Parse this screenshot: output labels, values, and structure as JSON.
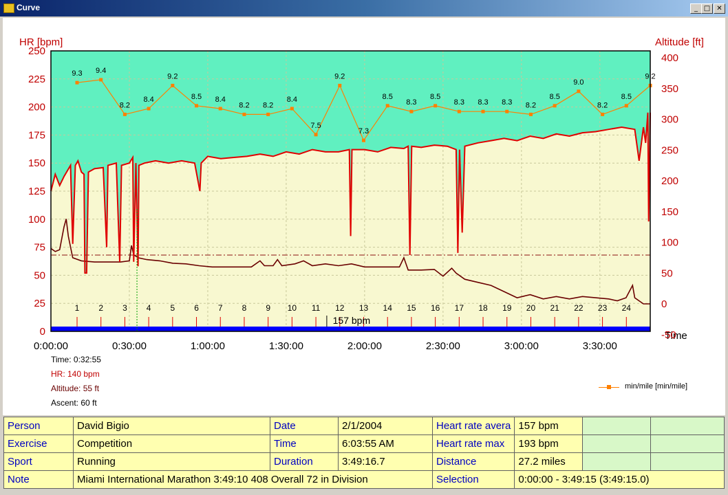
{
  "window": {
    "title": "Curve",
    "buttons": {
      "minimize": "_",
      "maximize": "□",
      "close": "✕"
    }
  },
  "chart_data": {
    "type": "line",
    "left_axis_label": "HR [bpm]",
    "right_axis_label": "Altitude [ft]",
    "x_axis_label": "Time",
    "left_ticks": [
      "250",
      "225",
      "200",
      "175",
      "150",
      "125",
      "100",
      "75",
      "50",
      "25",
      "0"
    ],
    "right_ticks": [
      "400",
      "350",
      "300",
      "250",
      "200",
      "150",
      "100",
      "50",
      "0",
      "-50"
    ],
    "x_ticks": [
      "0:00:00",
      "0:30:00",
      "1:00:00",
      "1:30:00",
      "2:00:00",
      "2:30:00",
      "3:00:00",
      "3:30:00"
    ],
    "hr_ylim": [
      0,
      250
    ],
    "alt_ylim": [
      -50,
      400
    ],
    "time_range_seconds": [
      0,
      13756
    ],
    "hr_avg_bpm": 157,
    "hr_avg_label": "157 bpm",
    "hr_level_shown": 68,
    "hr_curve": [
      [
        0,
        125
      ],
      [
        100,
        140
      ],
      [
        200,
        130
      ],
      [
        300,
        138
      ],
      [
        450,
        148
      ],
      [
        500,
        78
      ],
      [
        560,
        148
      ],
      [
        620,
        152
      ],
      [
        700,
        142
      ],
      [
        760,
        140
      ],
      [
        780,
        52
      ],
      [
        820,
        52
      ],
      [
        860,
        142
      ],
      [
        1000,
        145
      ],
      [
        1200,
        146
      ],
      [
        1280,
        75
      ],
      [
        1310,
        148
      ],
      [
        1500,
        150
      ],
      [
        1580,
        62
      ],
      [
        1620,
        148
      ],
      [
        1800,
        150
      ],
      [
        1880,
        155
      ],
      [
        1900,
        62
      ],
      [
        1950,
        150
      ],
      [
        2000,
        58
      ],
      [
        2020,
        148
      ],
      [
        2150,
        150
      ],
      [
        2400,
        152
      ],
      [
        2700,
        150
      ],
      [
        3000,
        152
      ],
      [
        3300,
        150
      ],
      [
        3420,
        125
      ],
      [
        3450,
        150
      ],
      [
        3600,
        156
      ],
      [
        3900,
        154
      ],
      [
        4200,
        155
      ],
      [
        4500,
        156
      ],
      [
        4800,
        158
      ],
      [
        5100,
        156
      ],
      [
        5400,
        160
      ],
      [
        5700,
        158
      ],
      [
        6000,
        162
      ],
      [
        6300,
        160
      ],
      [
        6600,
        160
      ],
      [
        6850,
        162
      ],
      [
        6880,
        85
      ],
      [
        6910,
        162
      ],
      [
        7200,
        162
      ],
      [
        7500,
        160
      ],
      [
        7800,
        164
      ],
      [
        8100,
        163
      ],
      [
        8200,
        165
      ],
      [
        8240,
        68
      ],
      [
        8280,
        165
      ],
      [
        8500,
        164
      ],
      [
        8800,
        166
      ],
      [
        9100,
        165
      ],
      [
        9300,
        162
      ],
      [
        9340,
        70
      ],
      [
        9380,
        162
      ],
      [
        9440,
        88
      ],
      [
        9500,
        165
      ],
      [
        9800,
        168
      ],
      [
        10100,
        170
      ],
      [
        10400,
        172
      ],
      [
        10700,
        170
      ],
      [
        11000,
        174
      ],
      [
        11300,
        172
      ],
      [
        11600,
        176
      ],
      [
        11900,
        174
      ],
      [
        12200,
        177
      ],
      [
        12500,
        178
      ],
      [
        12800,
        180
      ],
      [
        13100,
        182
      ],
      [
        13400,
        180
      ],
      [
        13500,
        152
      ],
      [
        13600,
        182
      ],
      [
        13650,
        168
      ],
      [
        13700,
        195
      ],
      [
        13720,
        98
      ],
      [
        13756,
        195
      ]
    ],
    "alt_curve": [
      [
        0,
        90
      ],
      [
        100,
        85
      ],
      [
        200,
        88
      ],
      [
        300,
        125
      ],
      [
        350,
        138
      ],
      [
        400,
        110
      ],
      [
        500,
        75
      ],
      [
        700,
        70
      ],
      [
        1000,
        68
      ],
      [
        1300,
        68
      ],
      [
        1600,
        68
      ],
      [
        1800,
        70
      ],
      [
        1850,
        95
      ],
      [
        1900,
        80
      ],
      [
        2000,
        75
      ],
      [
        2200,
        72
      ],
      [
        2500,
        70
      ],
      [
        2800,
        66
      ],
      [
        3100,
        65
      ],
      [
        3400,
        62
      ],
      [
        3700,
        60
      ],
      [
        4000,
        60
      ],
      [
        4300,
        60
      ],
      [
        4600,
        60
      ],
      [
        4800,
        70
      ],
      [
        4900,
        62
      ],
      [
        5100,
        62
      ],
      [
        5200,
        72
      ],
      [
        5300,
        62
      ],
      [
        5600,
        65
      ],
      [
        5800,
        70
      ],
      [
        6000,
        62
      ],
      [
        6300,
        65
      ],
      [
        6600,
        62
      ],
      [
        6900,
        65
      ],
      [
        7200,
        60
      ],
      [
        7500,
        60
      ],
      [
        8000,
        60
      ],
      [
        8100,
        75
      ],
      [
        8200,
        55
      ],
      [
        8500,
        55
      ],
      [
        8800,
        56
      ],
      [
        9000,
        45
      ],
      [
        9200,
        58
      ],
      [
        9300,
        50
      ],
      [
        9500,
        40
      ],
      [
        9800,
        35
      ],
      [
        10100,
        30
      ],
      [
        10400,
        20
      ],
      [
        10700,
        10
      ],
      [
        11000,
        15
      ],
      [
        11300,
        8
      ],
      [
        11600,
        12
      ],
      [
        11900,
        8
      ],
      [
        12200,
        12
      ],
      [
        12500,
        10
      ],
      [
        12800,
        8
      ],
      [
        13000,
        5
      ],
      [
        13200,
        10
      ],
      [
        13350,
        30
      ],
      [
        13400,
        10
      ],
      [
        13600,
        0
      ],
      [
        13756,
        0
      ]
    ],
    "split_markers": [
      "1",
      "2",
      "3",
      "4",
      "5",
      "6",
      "7",
      "8",
      "9",
      "10",
      "11",
      "12",
      "13",
      "14",
      "15",
      "16",
      "17",
      "18",
      "19",
      "20",
      "21",
      "22",
      "23",
      "24"
    ],
    "pace_legend": "min/mile [min/mile]",
    "pace_series": [
      {
        "lap": 1,
        "value": 9.3,
        "label": "9.3"
      },
      {
        "lap": 2,
        "value": 9.4,
        "label": "9.4"
      },
      {
        "lap": 3,
        "value": 8.2,
        "label": "8.2"
      },
      {
        "lap": 4,
        "value": 8.4,
        "label": "8.4"
      },
      {
        "lap": 5,
        "value": 9.2,
        "label": "9.2"
      },
      {
        "lap": 6,
        "value": 8.5,
        "label": "8.5"
      },
      {
        "lap": 7,
        "value": 8.4,
        "label": "8.4"
      },
      {
        "lap": 8,
        "value": 8.2,
        "label": "8.2"
      },
      {
        "lap": 9,
        "value": 8.2,
        "label": "8.2"
      },
      {
        "lap": 10,
        "value": 8.4,
        "label": "8.4"
      },
      {
        "lap": 11,
        "value": 7.5,
        "label": "7.5"
      },
      {
        "lap": 12,
        "value": 9.2,
        "label": "9.2"
      },
      {
        "lap": 13,
        "value": 7.3,
        "label": "7.3"
      },
      {
        "lap": 14,
        "value": 8.5,
        "label": "8.5"
      },
      {
        "lap": 15,
        "value": 8.3,
        "label": "8.3"
      },
      {
        "lap": 16,
        "value": 8.5,
        "label": "8.5"
      },
      {
        "lap": 17,
        "value": 8.3,
        "label": "8.3"
      },
      {
        "lap": 18,
        "value": 8.3,
        "label": "8.3"
      },
      {
        "lap": 19,
        "value": 8.3,
        "label": "8.3"
      },
      {
        "lap": 20,
        "value": 8.2,
        "label": "8.2"
      },
      {
        "lap": 21,
        "value": 8.5,
        "label": "8.5"
      },
      {
        "lap": 22,
        "value": 9.0,
        "label": "9.0"
      },
      {
        "lap": 23,
        "value": 8.2,
        "label": "8.2"
      },
      {
        "lap": 24,
        "value": 8.5,
        "label": "8.5"
      },
      {
        "lap": 25,
        "value": 9.2,
        "label": "9.2"
      }
    ],
    "cursor": {
      "time_seconds": 1975,
      "time": "Time: 0:32:55",
      "hr": "HR: 140 bpm",
      "altitude": "Altitude: 55 ft",
      "ascent": "Ascent: 60 ft"
    },
    "colors": {
      "hr": "#e00000",
      "altitude": "#6a0000",
      "pace": "#ff8000",
      "above_hr_fill": "#60f0c0",
      "below_hr_fill": "#f8f8d0",
      "time_bar": "#0000ff",
      "label_red": "#c00000"
    }
  },
  "info_panel": {
    "person_label": "Person",
    "person_value": "David Bigio",
    "date_label": "Date",
    "date_value": "2/1/2004",
    "hr_avg_label": "Heart rate avera",
    "hr_avg_value": "157 bpm",
    "exercise_label": "Exercise",
    "exercise_value": "Competition",
    "time_label": "Time",
    "time_value": "6:03:55 AM",
    "hr_max_label": "Heart rate max",
    "hr_max_value": "193 bpm",
    "sport_label": "Sport",
    "sport_value": "Running",
    "duration_label": "Duration",
    "duration_value": "3:49:16.7",
    "distance_label": "Distance",
    "distance_value": "27.2 miles",
    "note_label": "Note",
    "note_value": "Miami International Marathon 3:49:10 408 Overall 72 in Division",
    "selection_label": "Selection",
    "selection_value": "0:00:00 - 3:49:15 (3:49:15.0)"
  }
}
